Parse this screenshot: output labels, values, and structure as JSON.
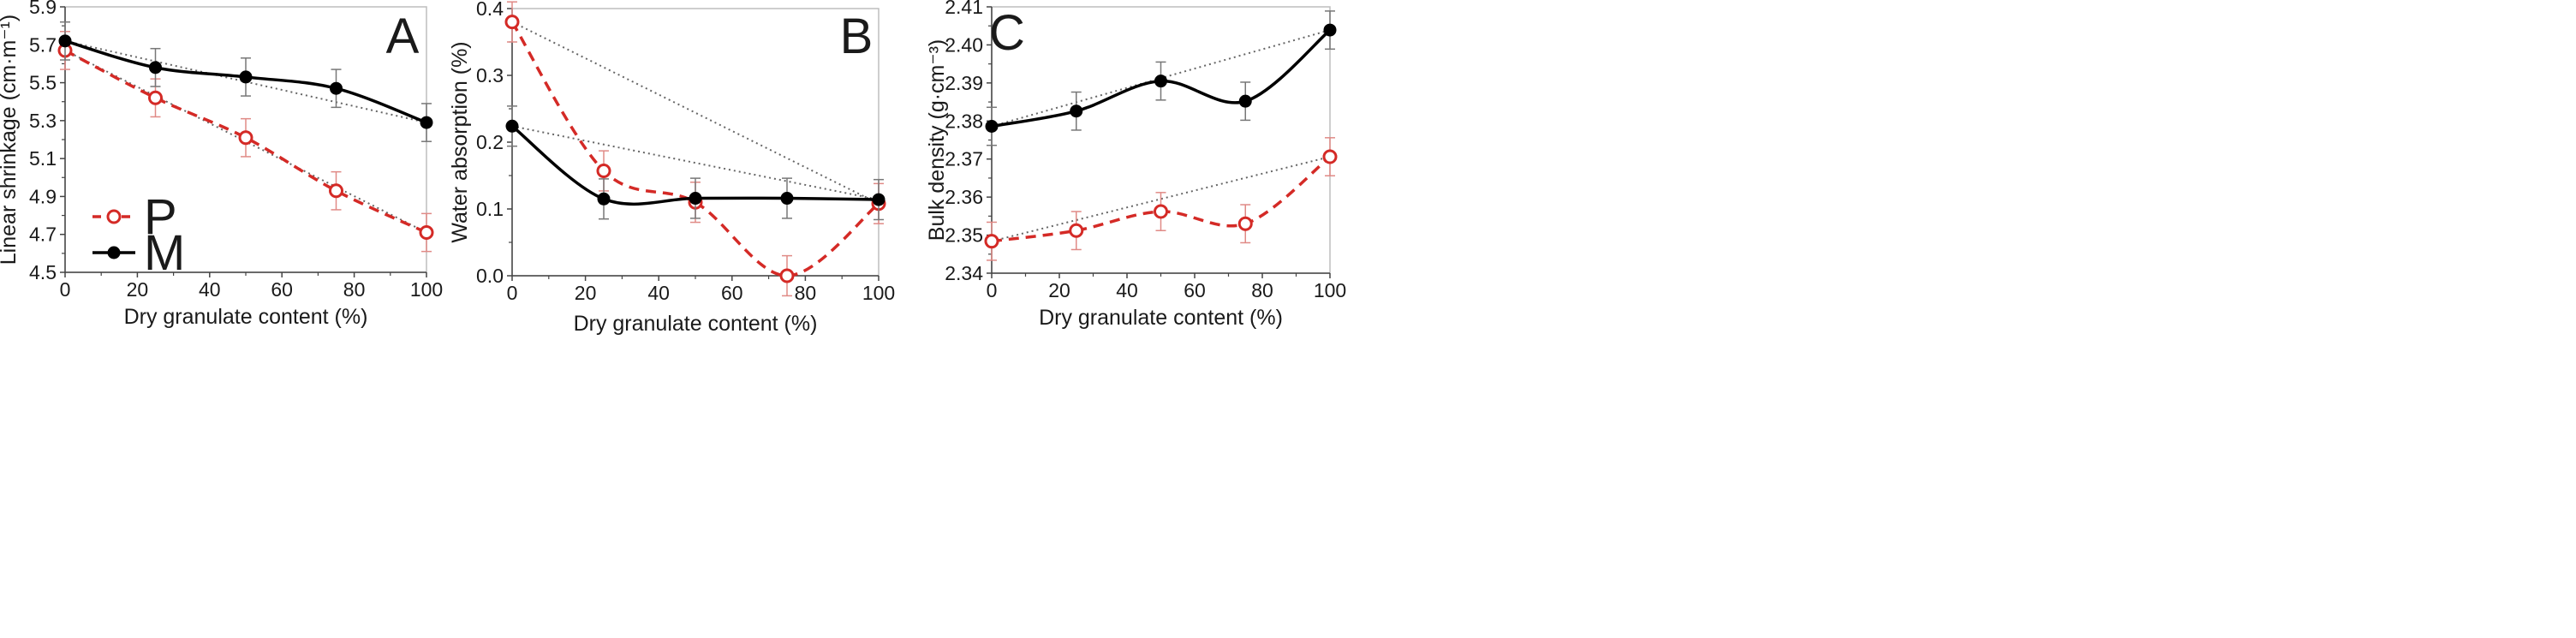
{
  "chart_data": [
    {
      "type": "line",
      "panel_label": "A",
      "xlabel": "Dry granulate content (%)",
      "ylabel": "Linear shrinkage (cm·m⁻¹)",
      "xlim": [
        0,
        100
      ],
      "ylim": [
        4.5,
        5.9
      ],
      "x_ticks": [
        0,
        20,
        40,
        60,
        80,
        100
      ],
      "y_ticks": [
        4.5,
        4.7,
        4.9,
        5.1,
        5.3,
        5.5,
        5.7,
        5.9
      ],
      "y_tick_labels": [
        "4.5",
        "4.7",
        "4.9",
        "5.1",
        "5.3",
        "5.5",
        "5.7",
        "5.9"
      ],
      "grid": false,
      "legend": {
        "position": "bottom-left",
        "entries": [
          "P",
          "M"
        ]
      },
      "series": [
        {
          "name": "P",
          "color": "#d42a26",
          "style": "dashed",
          "marker": "open-circle",
          "x": [
            0,
            25,
            50,
            75,
            100
          ],
          "y": [
            5.67,
            5.42,
            5.21,
            4.93,
            4.71
          ],
          "error": [
            0.1,
            0.1,
            0.1,
            0.1,
            0.1
          ],
          "trend_line": [
            5.67,
            4.71
          ]
        },
        {
          "name": "M",
          "color": "#000000",
          "style": "solid",
          "marker": "filled-circle",
          "x": [
            0,
            25,
            50,
            75,
            100
          ],
          "y": [
            5.72,
            5.58,
            5.53,
            5.47,
            5.29
          ],
          "error": [
            0.1,
            0.1,
            0.1,
            0.1,
            0.1
          ],
          "trend_line": [
            5.72,
            5.29
          ]
        }
      ]
    },
    {
      "type": "line",
      "panel_label": "B",
      "xlabel": "Dry granulate content (%)",
      "ylabel": "Water absorption (%)",
      "xlim": [
        0,
        100
      ],
      "ylim": [
        0.0,
        0.4
      ],
      "x_ticks": [
        0,
        20,
        40,
        60,
        80,
        100
      ],
      "y_ticks": [
        0.0,
        0.1,
        0.2,
        0.3,
        0.4
      ],
      "y_tick_labels": [
        "0.0",
        "0.1",
        "0.2",
        "0.3",
        "0.4"
      ],
      "grid": false,
      "series": [
        {
          "name": "P",
          "color": "#d42a26",
          "style": "dashed",
          "marker": "open-circle",
          "x": [
            0,
            25,
            50,
            75,
            100
          ],
          "y": [
            0.38,
            0.157,
            0.11,
            0.0,
            0.108
          ],
          "error": [
            0.03,
            0.03,
            0.03,
            0.03,
            0.03
          ],
          "trend_line": [
            0.38,
            0.108
          ]
        },
        {
          "name": "M",
          "color": "#000000",
          "style": "solid",
          "marker": "filled-circle",
          "x": [
            0,
            25,
            50,
            75,
            100
          ],
          "y": [
            0.224,
            0.115,
            0.116,
            0.116,
            0.114
          ],
          "error": [
            0.03,
            0.03,
            0.03,
            0.03,
            0.03
          ],
          "trend_line": [
            0.224,
            0.114
          ]
        }
      ]
    },
    {
      "type": "line",
      "panel_label": "C",
      "xlabel": "Dry granulate content (%)",
      "ylabel": "Bulk density (g·cm⁻³)",
      "xlim": [
        0,
        100
      ],
      "ylim": [
        2.34,
        2.41
      ],
      "x_ticks": [
        0,
        20,
        40,
        60,
        80,
        100
      ],
      "y_ticks": [
        2.34,
        2.35,
        2.36,
        2.37,
        2.38,
        2.39,
        2.4,
        2.41
      ],
      "y_tick_labels": [
        "2.34",
        "2.35",
        "2.36",
        "2.37",
        "2.38",
        "2.39",
        "2.40",
        "2.41"
      ],
      "grid": false,
      "series": [
        {
          "name": "P",
          "color": "#d42a26",
          "style": "dashed",
          "marker": "open-circle",
          "x": [
            0,
            25,
            50,
            75,
            100
          ],
          "y": [
            2.3484,
            2.3512,
            2.3562,
            2.353,
            2.3706
          ],
          "error": [
            0.005,
            0.005,
            0.005,
            0.005,
            0.005
          ],
          "trend_line": [
            2.3484,
            2.3706
          ]
        },
        {
          "name": "M",
          "color": "#000000",
          "style": "solid",
          "marker": "filled-circle",
          "x": [
            0,
            25,
            50,
            75,
            100
          ],
          "y": [
            2.3786,
            2.3826,
            2.3905,
            2.3852,
            2.4039
          ],
          "error": [
            0.005,
            0.005,
            0.005,
            0.005,
            0.005
          ],
          "trend_line": [
            2.3786,
            2.4039
          ]
        }
      ]
    }
  ]
}
